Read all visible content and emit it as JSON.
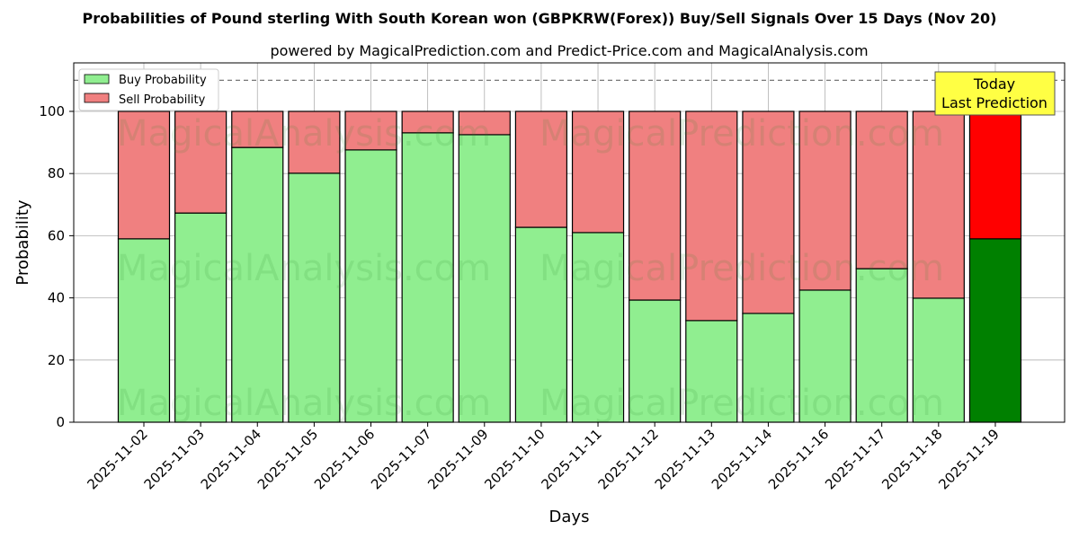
{
  "chart_data": {
    "type": "bar",
    "title": "Probabilities of Pound sterling With South Korean won (GBPKRW(Forex)) Buy/Sell Signals Over 15 Days (Nov 20)",
    "subtitle": "powered by MagicalPrediction.com and Predict-Price.com and MagicalAnalysis.com",
    "xlabel": "Days",
    "ylabel": "Probability",
    "ylim": [
      0,
      115.6
    ],
    "yticks": [
      0,
      20,
      40,
      60,
      80,
      100
    ],
    "categories": [
      "2025-11-02",
      "2025-11-03",
      "2025-11-04",
      "2025-11-05",
      "2025-11-06",
      "2025-11-07",
      "2025-11-09",
      "2025-11-10",
      "2025-11-11",
      "2025-11-12",
      "2025-11-13",
      "2025-11-14",
      "2025-11-16",
      "2025-11-17",
      "2025-11-18",
      "2025-11-19"
    ],
    "series": [
      {
        "name": "Buy Probability",
        "color": "#90ee90",
        "values": [
          59.0,
          67.3,
          88.4,
          80.1,
          87.6,
          93.1,
          92.5,
          62.7,
          61.0,
          39.3,
          32.7,
          35.0,
          42.5,
          49.4,
          39.9,
          59.0
        ]
      },
      {
        "name": "Sell Probability",
        "color": "#f08080",
        "values": [
          41.0,
          32.7,
          11.6,
          19.9,
          12.4,
          6.9,
          7.5,
          37.3,
          39.0,
          60.7,
          67.3,
          65.0,
          57.5,
          50.6,
          60.1,
          41.0
        ]
      }
    ],
    "highlight_colors": {
      "buy": "#008000",
      "sell": "#ff0000"
    },
    "reference_line": 110,
    "annotation": [
      "Today",
      "Last Prediction"
    ],
    "watermarks": [
      "MagicalAnalysis.com",
      "MagicalPrediction.com"
    ],
    "legend_position": "top-left",
    "grid": true
  }
}
